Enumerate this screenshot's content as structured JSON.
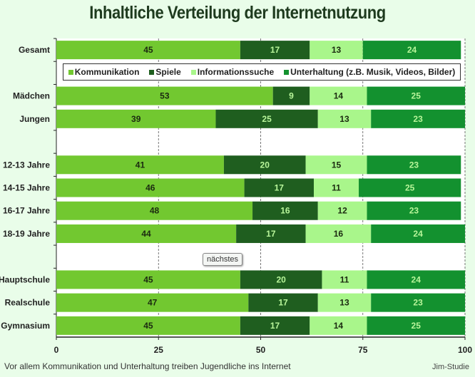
{
  "chart_data": {
    "type": "bar",
    "orientation": "horizontal",
    "stacked": true,
    "title": "Inhaltliche Verteilung der Internetnutzung",
    "categories": [
      "Gesamt",
      "",
      "Mädchen",
      "Jungen",
      "",
      "12-13 Jahre",
      "14-15 Jahre",
      "16-17 Jahre",
      "18-19 Jahre",
      "",
      "Hauptschule",
      "Realschule",
      "Gymnasium"
    ],
    "series": [
      {
        "name": "Kommunikation",
        "color": "#72c830",
        "values": [
          45,
          null,
          53,
          39,
          null,
          41,
          46,
          48,
          44,
          null,
          45,
          47,
          45
        ]
      },
      {
        "name": "Spiele",
        "color": "#1f5e1f",
        "values": [
          17,
          null,
          9,
          25,
          null,
          20,
          17,
          16,
          17,
          null,
          20,
          17,
          17
        ]
      },
      {
        "name": "Informationssuche",
        "color": "#a9f68b",
        "values": [
          13,
          null,
          14,
          13,
          null,
          15,
          11,
          12,
          16,
          null,
          11,
          13,
          14
        ]
      },
      {
        "name": "Unterhaltung (z.B. Musik, Videos, Bilder)",
        "color": "#13912f",
        "values": [
          24,
          null,
          25,
          23,
          null,
          23,
          25,
          23,
          24,
          null,
          24,
          23,
          25
        ]
      }
    ],
    "xlim": [
      0,
      100
    ],
    "xticks": [
      "0",
      "25",
      "50",
      "75",
      "100"
    ],
    "grid": "vertical dashed",
    "legend": "top"
  },
  "caption": "Vor allem Kommunikation und Unterhaltung treiben Jugendliche ins Internet",
  "source": "Jim-Studie",
  "button_next": "nächstes"
}
